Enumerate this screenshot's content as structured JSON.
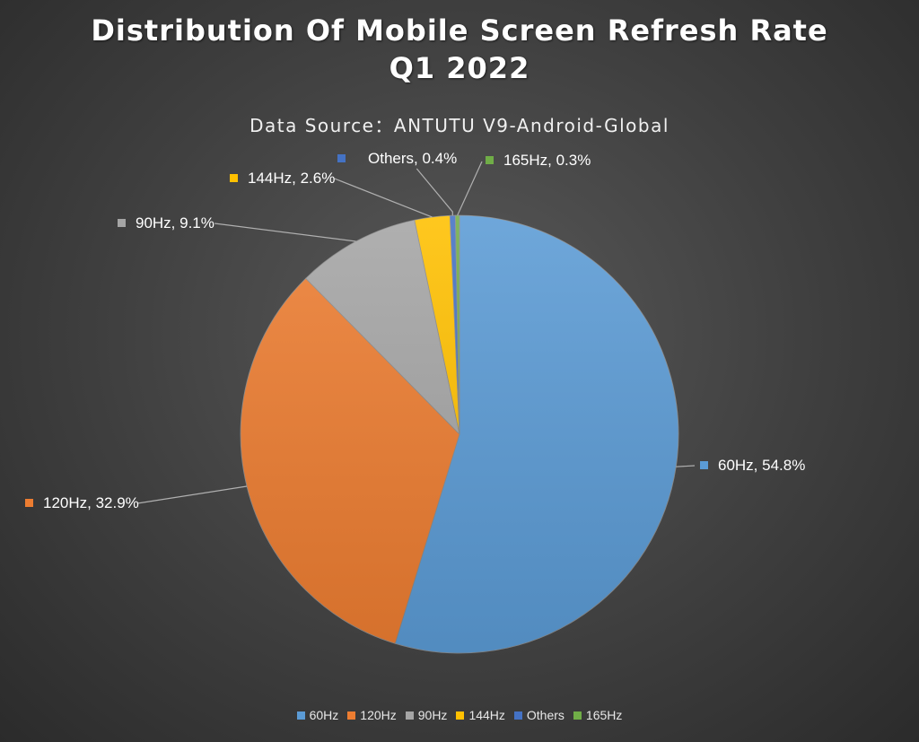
{
  "chart_data": {
    "type": "pie",
    "title_line1": "Distribution Of Mobile Screen Refresh Rate",
    "title_line2": "Q1 2022",
    "subtitle": "Data Source：ANTUTU V9-Android-Global",
    "legend_position": "bottom",
    "slices": [
      {
        "name": "60Hz",
        "value": 54.8,
        "label": "60Hz, 54.8%",
        "color": "#5b9bd5"
      },
      {
        "name": "120Hz",
        "value": 32.9,
        "label": "120Hz, 32.9%",
        "color": "#ed7d31"
      },
      {
        "name": "90Hz",
        "value": 9.1,
        "label": "90Hz, 9.1%",
        "color": "#a5a5a5"
      },
      {
        "name": "144Hz",
        "value": 2.6,
        "label": "144Hz, 2.6%",
        "color": "#ffc000"
      },
      {
        "name": "Others",
        "value": 0.4,
        "label": "Others, 0.4%",
        "color": "#4472c4"
      },
      {
        "name": "165Hz",
        "value": 0.3,
        "label": "165Hz, 0.3%",
        "color": "#70ad47"
      }
    ]
  }
}
